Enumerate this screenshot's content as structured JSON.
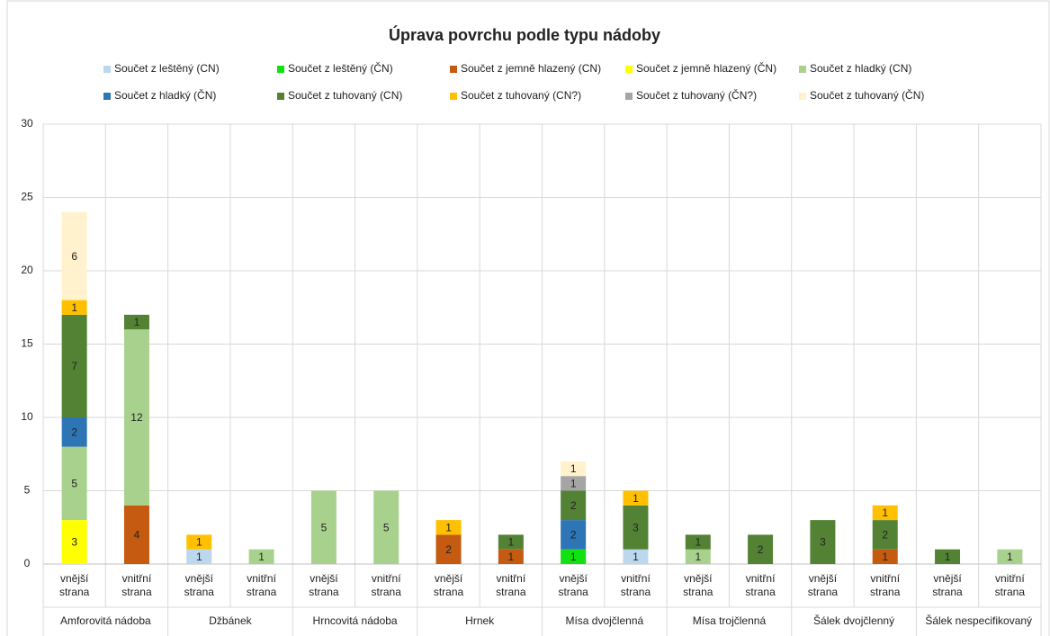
{
  "chart_data": {
    "type": "stacked_bar",
    "title": "Úprava povrchu podle typu nádoby",
    "groups": [
      "Amforovitá nádoba",
      "Džbánek",
      "Hrncovitá nádoba",
      "Hrnek",
      "Mísa dvojčlenná",
      "Mísa trojčlenná",
      "Šálek dvojčlenný",
      "Šálek nespecifikovaný"
    ],
    "categories": [
      "vnější strana",
      "vnitřní strana",
      "vnější strana",
      "vnitřní strana",
      "vnější strana",
      "vnitřní strana",
      "vnější strana",
      "vnitřní strana",
      "vnější strana",
      "vnitřní strana",
      "vnější strana",
      "vnitřní strana",
      "vnější strana",
      "vnitřní strana",
      "vnější strana",
      "vnitřní strana"
    ],
    "series": [
      {
        "name": "Součet z leštěný (CN)",
        "color": "#bdd7ee",
        "values": [
          null,
          null,
          1,
          null,
          null,
          null,
          null,
          null,
          null,
          1,
          null,
          null,
          null,
          null,
          null,
          null
        ]
      },
      {
        "name": "Součet z leštěný (ČN)",
        "color": "#11e011",
        "values": [
          null,
          null,
          null,
          null,
          null,
          null,
          null,
          null,
          1,
          null,
          null,
          null,
          null,
          null,
          null,
          null
        ]
      },
      {
        "name": "Součet z jemně hlazený (CN)",
        "color": "#c55a11",
        "values": [
          null,
          4,
          null,
          null,
          null,
          null,
          2,
          1,
          null,
          null,
          null,
          null,
          null,
          1,
          null,
          null
        ]
      },
      {
        "name": "Součet z jemně hlazený (ČN)",
        "color": "#ffff00",
        "values": [
          3,
          null,
          null,
          null,
          null,
          null,
          null,
          null,
          null,
          null,
          null,
          null,
          null,
          null,
          null,
          null
        ]
      },
      {
        "name": "Součet z hladký (CN)",
        "color": "#a9d18e",
        "values": [
          5,
          12,
          null,
          1,
          5,
          5,
          null,
          null,
          null,
          null,
          1,
          null,
          null,
          null,
          null,
          1
        ]
      },
      {
        "name": "Součet z hladký (ČN)",
        "color": "#2e75b6",
        "values": [
          2,
          null,
          null,
          null,
          null,
          null,
          null,
          null,
          2,
          null,
          null,
          null,
          null,
          null,
          null,
          null
        ]
      },
      {
        "name": "Součet z tuhovaný (CN)",
        "color": "#548235",
        "values": [
          7,
          1,
          null,
          null,
          null,
          null,
          null,
          1,
          2,
          3,
          1,
          2,
          3,
          2,
          1,
          null
        ]
      },
      {
        "name": "Součet z tuhovaný (CN?)",
        "color": "#ffc000",
        "values": [
          1,
          null,
          1,
          null,
          null,
          null,
          1,
          null,
          null,
          1,
          null,
          null,
          null,
          1,
          null,
          null
        ]
      },
      {
        "name": "Součet z tuhovaný (ČN?)",
        "color": "#a5a5a5",
        "values": [
          null,
          null,
          null,
          null,
          null,
          null,
          null,
          null,
          1,
          null,
          null,
          null,
          null,
          null,
          null,
          null
        ]
      },
      {
        "name": "Součet z tuhovaný (ČN)",
        "color": "#fff2cc",
        "values": [
          6,
          null,
          null,
          null,
          null,
          null,
          null,
          null,
          1,
          null,
          null,
          null,
          null,
          null,
          null,
          null
        ]
      }
    ],
    "ylim": [
      0,
      30
    ],
    "yticks": [
      0,
      5,
      10,
      15,
      20,
      25,
      30
    ],
    "grid": true
  }
}
